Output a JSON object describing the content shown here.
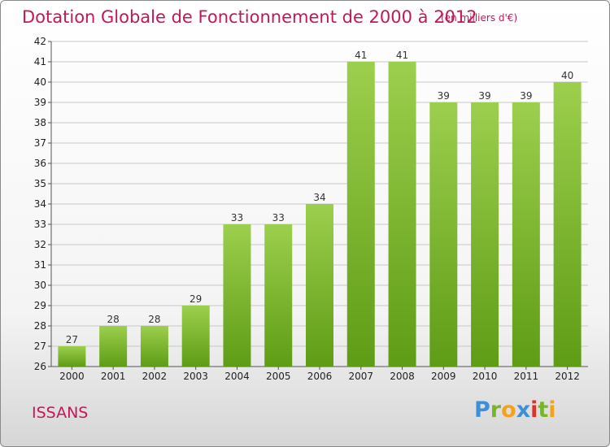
{
  "title": "Dotation Globale de Fonctionnement de 2000 à 2012",
  "subtitle": "(en milliers d'€)",
  "commune": "ISSANS",
  "logo": {
    "letters": [
      "P",
      "r",
      "o",
      "x",
      "i",
      "t",
      "i"
    ]
  },
  "colors": {
    "title": "#c2185b",
    "bar_light": "#9ccf4d",
    "bar_dark": "#5f9c16",
    "grid": "#c8c8c8"
  },
  "chart_data": {
    "type": "bar",
    "title": "Dotation Globale de Fonctionnement de 2000 à 2012",
    "subtitle": "(en milliers d'€)",
    "categories": [
      "2000",
      "2001",
      "2002",
      "2003",
      "2004",
      "2005",
      "2006",
      "2007",
      "2008",
      "2009",
      "2010",
      "2011",
      "2012"
    ],
    "values": [
      27,
      28,
      28,
      29,
      33,
      33,
      34,
      41,
      41,
      39,
      39,
      39,
      40
    ],
    "ylim": [
      26,
      42
    ],
    "yticks": [
      26,
      27,
      28,
      29,
      30,
      31,
      32,
      33,
      34,
      35,
      36,
      37,
      38,
      39,
      40,
      41,
      42
    ],
    "xlabel": "",
    "ylabel": "",
    "grid": true,
    "legend": "none"
  }
}
